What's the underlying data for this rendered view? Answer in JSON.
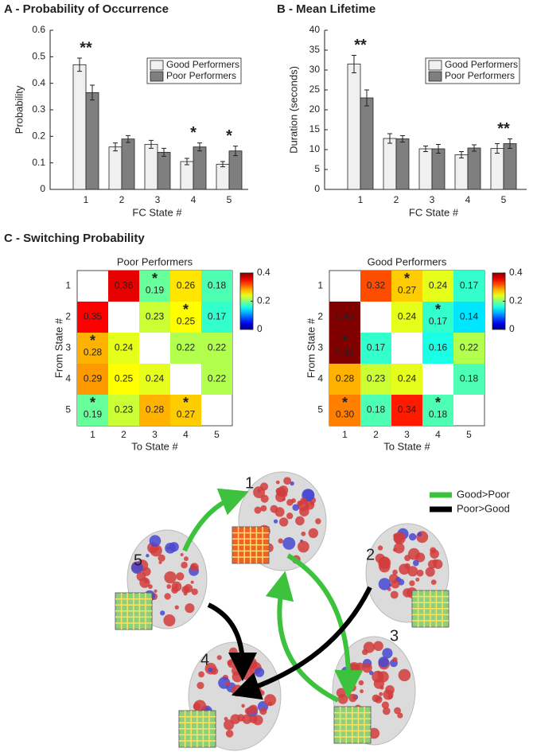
{
  "chart_data": [
    {
      "type": "bar",
      "title": "A - Probability of Occurrence",
      "xlabel": "FC State #",
      "ylabel": "Probability",
      "categories": [
        "1",
        "2",
        "3",
        "4",
        "5"
      ],
      "series": [
        {
          "name": "Good Performers",
          "color": "#f0f0f0",
          "values": [
            0.47,
            0.16,
            0.17,
            0.105,
            0.095
          ],
          "errors": [
            0.025,
            0.015,
            0.015,
            0.012,
            0.01
          ]
        },
        {
          "name": "Poor Performers",
          "color": "#7f7f7f",
          "values": [
            0.365,
            0.19,
            0.14,
            0.16,
            0.145
          ],
          "errors": [
            0.028,
            0.013,
            0.015,
            0.015,
            0.018
          ]
        }
      ],
      "ylim": [
        0,
        0.6
      ],
      "yticks": [
        0,
        0.1,
        0.2,
        0.3,
        0.4,
        0.5,
        0.6
      ],
      "legend": "upper right",
      "annotations": [
        {
          "text": "**",
          "category": "1"
        },
        {
          "text": "*",
          "category": "4"
        },
        {
          "text": "*",
          "category": "5"
        }
      ]
    },
    {
      "type": "bar",
      "title": "B - Mean Lifetime",
      "xlabel": "FC State #",
      "ylabel": "Duration (seconds)",
      "categories": [
        "1",
        "2",
        "3",
        "4",
        "5"
      ],
      "series": [
        {
          "name": "Good Performers",
          "color": "#f0f0f0",
          "values": [
            31.5,
            12.8,
            10.2,
            8.7,
            10.3
          ],
          "errors": [
            2.2,
            1.2,
            0.7,
            0.8,
            1.2
          ]
        },
        {
          "name": "Poor Performers",
          "color": "#7f7f7f",
          "values": [
            23,
            12.7,
            10.2,
            10.4,
            11.5
          ],
          "errors": [
            2,
            0.8,
            1.1,
            0.8,
            1.2
          ]
        }
      ],
      "ylim": [
        0,
        40
      ],
      "yticks": [
        0,
        5,
        10,
        15,
        20,
        25,
        30,
        35,
        40
      ],
      "legend": "upper right",
      "annotations": [
        {
          "text": "**",
          "category": "1"
        },
        {
          "text": "**",
          "category": "5"
        }
      ]
    },
    {
      "type": "heatmap",
      "title": "Poor Performers",
      "xlabel": "To State #",
      "ylabel": "From State #",
      "x": [
        "1",
        "2",
        "3",
        "4",
        "5"
      ],
      "y": [
        "1",
        "2",
        "3",
        "4",
        "5"
      ],
      "values": [
        [
          null,
          0.36,
          0.19,
          0.26,
          0.18
        ],
        [
          0.35,
          null,
          0.23,
          0.25,
          0.17
        ],
        [
          0.28,
          0.24,
          null,
          0.22,
          0.22
        ],
        [
          0.29,
          0.25,
          0.24,
          null,
          0.22
        ],
        [
          0.19,
          0.23,
          0.28,
          0.27,
          null
        ]
      ],
      "significant": [
        [
          false,
          false,
          true,
          false,
          false
        ],
        [
          false,
          false,
          false,
          true,
          false
        ],
        [
          true,
          false,
          false,
          false,
          false
        ],
        [
          false,
          false,
          false,
          false,
          false
        ],
        [
          true,
          false,
          false,
          true,
          false
        ]
      ],
      "marker": "*",
      "colormap": "jet",
      "clim": [
        0,
        0.4
      ],
      "cticks": [
        0,
        0.2,
        0.4
      ]
    },
    {
      "type": "heatmap",
      "title": "Good Performers",
      "xlabel": "To State #",
      "ylabel": "From State #",
      "x": [
        "1",
        "2",
        "3",
        "4",
        "5"
      ],
      "y": [
        "1",
        "2",
        "3",
        "4",
        "5"
      ],
      "values": [
        [
          null,
          0.32,
          0.27,
          0.24,
          0.17
        ],
        [
          0.43,
          null,
          0.24,
          0.17,
          0.14
        ],
        [
          0.41,
          0.17,
          null,
          0.16,
          0.22
        ],
        [
          0.28,
          0.23,
          0.24,
          null,
          0.18
        ],
        [
          0.3,
          0.18,
          0.34,
          0.18,
          null
        ]
      ],
      "value_labels": [
        [
          null,
          "0.32",
          "0.27",
          "0.24",
          "0.17"
        ],
        [
          "0.43",
          null,
          "0.24",
          "0.17",
          "0.14"
        ],
        [
          "0.41",
          "0.17",
          null,
          "0.16",
          "0.22"
        ],
        [
          "0.28",
          "0.23",
          "0.24",
          null,
          "0.18"
        ],
        [
          "0.30",
          "0.18",
          "0.34",
          "0.18",
          null
        ]
      ],
      "significant": [
        [
          false,
          false,
          true,
          false,
          false
        ],
        [
          false,
          false,
          false,
          true,
          false
        ],
        [
          true,
          false,
          false,
          false,
          false
        ],
        [
          false,
          false,
          false,
          false,
          false
        ],
        [
          true,
          false,
          false,
          true,
          false
        ]
      ],
      "marker": "*",
      "colormap": "jet",
      "clim": [
        0,
        0.4
      ],
      "cticks": [
        0,
        0.2,
        0.4
      ]
    }
  ],
  "section_title": "C - Switching Probability",
  "diagram": {
    "nodes": [
      {
        "label": "1"
      },
      {
        "label": "2"
      },
      {
        "label": "3"
      },
      {
        "label": "4"
      },
      {
        "label": "5"
      }
    ],
    "legend": [
      {
        "label": "Good>Poor",
        "color": "#3cc23c"
      },
      {
        "label": "Poor>Good",
        "color": "#000000"
      }
    ]
  }
}
